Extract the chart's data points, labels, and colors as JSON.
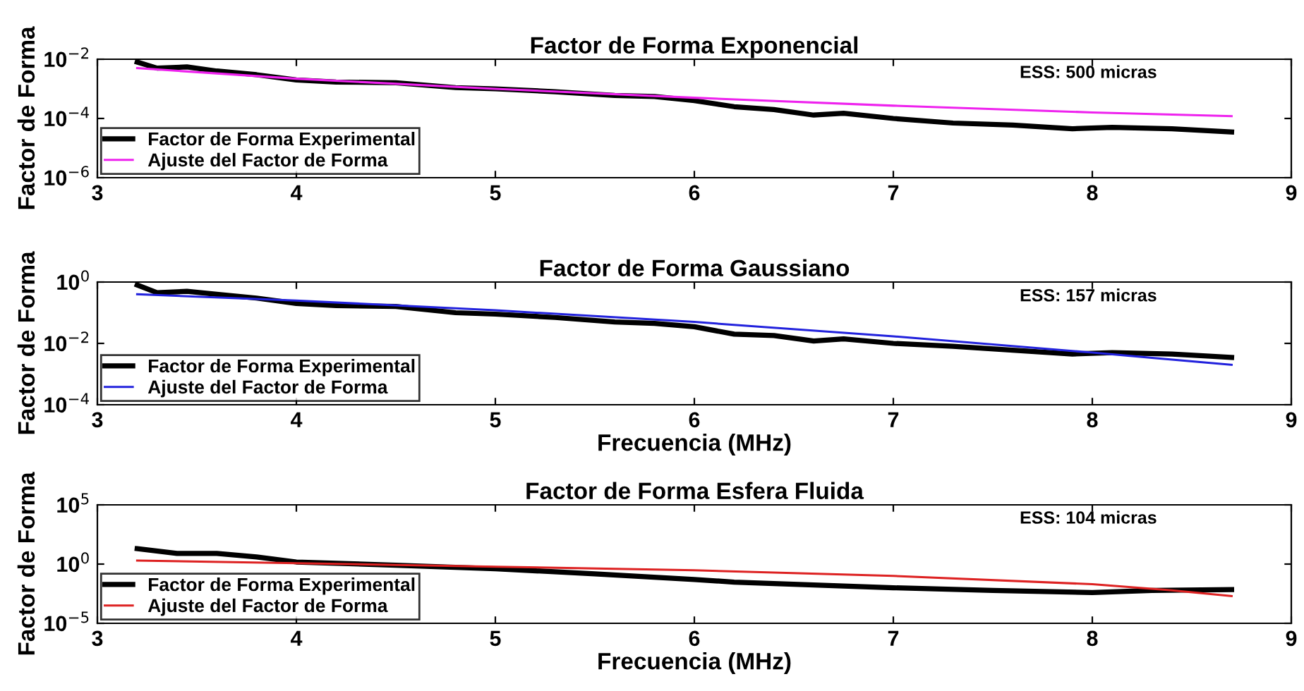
{
  "chart_data": [
    {
      "type": "line",
      "title": "Factor de Forma Exponencial",
      "ylabel": "Factor de Forma",
      "log": "y",
      "xlim": [
        3,
        9
      ],
      "xticks": [
        3,
        4,
        5,
        6,
        7,
        8,
        9
      ],
      "ylim": [
        1e-06,
        0.01
      ],
      "yticks": [
        {
          "value": 1e-06,
          "label": "10$^{−6}$"
        },
        {
          "value": 0.0001,
          "label": "10$^{−4}$"
        },
        {
          "value": 0.01,
          "label": "10$^{−2}$"
        }
      ],
      "legend": "bottom left",
      "grid": false,
      "annotations": [
        "ESS: 500 micras"
      ],
      "series": [
        {
          "name": "Factor de Forma Experimental",
          "color": "#000000",
          "x": [
            3.2,
            3.3,
            3.45,
            3.6,
            3.8,
            4.0,
            4.2,
            4.5,
            4.8,
            5.0,
            5.3,
            5.6,
            5.8,
            6.0,
            6.2,
            6.4,
            6.6,
            6.75,
            7.0,
            7.3,
            7.6,
            7.9,
            8.1,
            8.4,
            8.7
          ],
          "values": [
            0.008,
            0.005,
            0.0055,
            0.004,
            0.003,
            0.002,
            0.0017,
            0.0016,
            0.0011,
            0.001,
            0.0008,
            0.0006,
            0.00055,
            0.0004,
            0.00025,
            0.0002,
            0.00013,
            0.00015,
            0.0001,
            7e-05,
            6e-05,
            4.5e-05,
            5e-05,
            4.5e-05,
            3.5e-05
          ]
        },
        {
          "name": "Ajuste del Factor de Forma",
          "color": "#ee22ee",
          "x": [
            3.2,
            4.0,
            5.0,
            6.0,
            7.0,
            8.0,
            8.7
          ],
          "values": [
            0.005,
            0.0022,
            0.001,
            0.0005,
            0.00027,
            0.00016,
            0.00012
          ]
        }
      ]
    },
    {
      "type": "line",
      "title": "Factor de Forma Gaussiano",
      "xlabel": "Frecuencia (MHz)",
      "ylabel": "Factor de Forma",
      "log": "y",
      "xlim": [
        3,
        9
      ],
      "xticks": [
        3,
        4,
        5,
        6,
        7,
        8,
        9
      ],
      "ylim": [
        0.0001,
        1
      ],
      "yticks": [
        {
          "value": 0.0001,
          "label": "10$^{−4}$"
        },
        {
          "value": 0.01,
          "label": "10$^{−2}$"
        },
        {
          "value": 1,
          "label": "10$^{0}$"
        }
      ],
      "legend": "bottom left",
      "grid": false,
      "annotations": [
        "ESS: 157 micras"
      ],
      "series": [
        {
          "name": "Factor de Forma Experimental",
          "color": "#000000",
          "x": [
            3.2,
            3.3,
            3.45,
            3.6,
            3.8,
            4.0,
            4.2,
            4.5,
            4.8,
            5.0,
            5.3,
            5.6,
            5.8,
            6.0,
            6.2,
            6.4,
            6.6,
            6.75,
            7.0,
            7.3,
            7.6,
            7.9,
            8.1,
            8.4,
            8.7
          ],
          "values": [
            0.8,
            0.45,
            0.5,
            0.4,
            0.3,
            0.2,
            0.17,
            0.16,
            0.1,
            0.09,
            0.07,
            0.05,
            0.045,
            0.035,
            0.02,
            0.018,
            0.012,
            0.014,
            0.01,
            0.008,
            0.006,
            0.0045,
            0.005,
            0.0045,
            0.0035
          ]
        },
        {
          "name": "Ajuste del Factor de Forma",
          "color": "#2222dd",
          "x": [
            3.2,
            4.0,
            5.0,
            6.0,
            7.0,
            8.0,
            8.7
          ],
          "values": [
            0.4,
            0.25,
            0.12,
            0.05,
            0.017,
            0.005,
            0.002
          ]
        }
      ]
    },
    {
      "type": "line",
      "title": "Factor de Forma Esfera Fluida",
      "xlabel": "Frecuencia (MHz)",
      "ylabel": "Factor de Forma",
      "log": "y",
      "xlim": [
        3,
        9
      ],
      "xticks": [
        3,
        4,
        5,
        6,
        7,
        8,
        9
      ],
      "ylim": [
        1e-05,
        100000
      ],
      "yticks": [
        {
          "value": 1e-05,
          "label": "10$^{−5}$"
        },
        {
          "value": 1,
          "label": "10$^{0}$"
        },
        {
          "value": 100000,
          "label": "10$^{5}$"
        }
      ],
      "legend": "bottom left",
      "grid": false,
      "annotations": [
        "ESS: 104 micras"
      ],
      "series": [
        {
          "name": "Factor de Forma Experimental",
          "color": "#000000",
          "x": [
            3.2,
            3.4,
            3.6,
            3.8,
            4.0,
            4.5,
            5.0,
            5.5,
            6.0,
            6.2,
            6.5,
            7.0,
            7.5,
            8.0,
            8.3,
            8.7
          ],
          "values": [
            20,
            8,
            8,
            4,
            1.5,
            0.8,
            0.4,
            0.15,
            0.05,
            0.03,
            0.02,
            0.01,
            0.006,
            0.004,
            0.006,
            0.007
          ]
        },
        {
          "name": "Ajuste del Factor de Forma",
          "color": "#dd2222",
          "x": [
            3.2,
            4.0,
            5.0,
            6.0,
            7.0,
            8.0,
            8.4,
            8.7
          ],
          "values": [
            2,
            1.2,
            0.6,
            0.3,
            0.1,
            0.02,
            0.006,
            0.002
          ]
        }
      ]
    }
  ]
}
